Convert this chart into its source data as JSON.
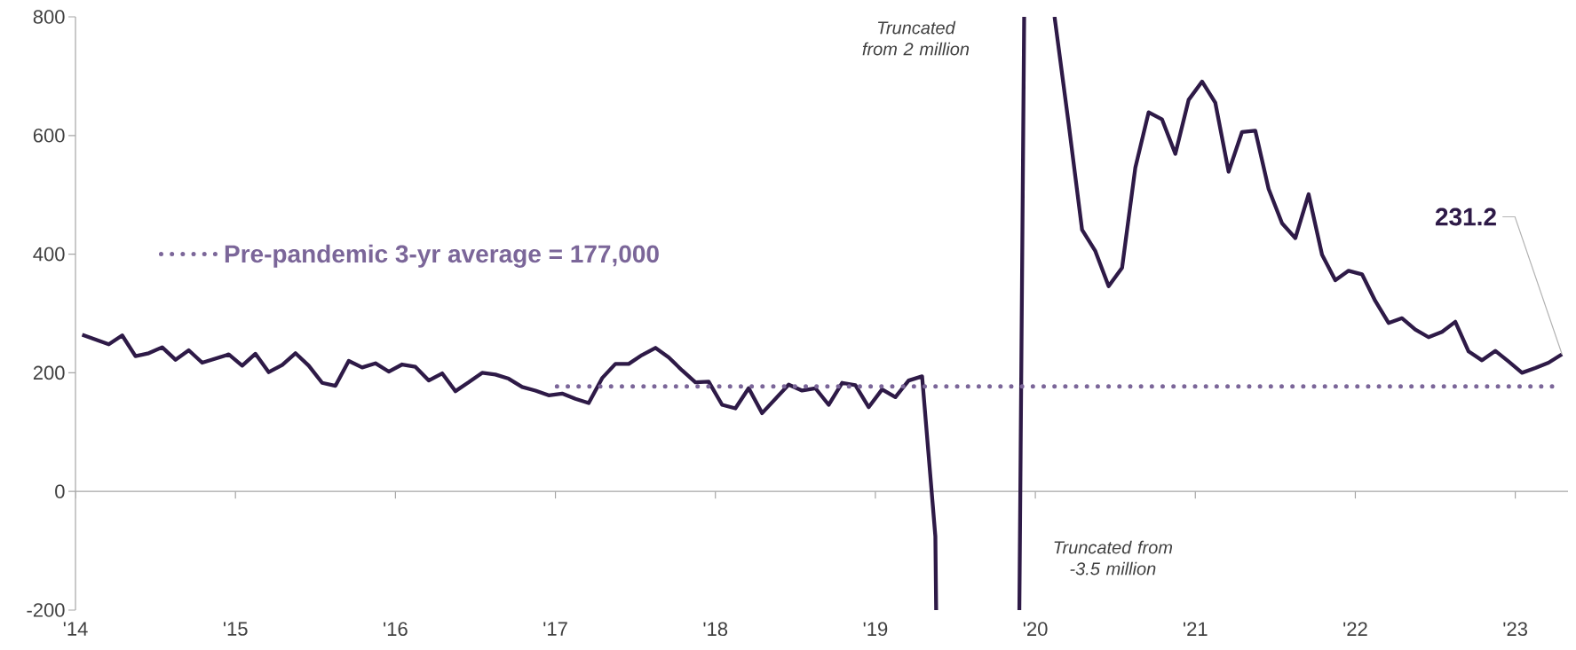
{
  "chart_data": {
    "type": "line",
    "xlim": [
      2014,
      2023.33
    ],
    "xticks": [
      {
        "value": 2014,
        "label": "'14"
      },
      {
        "value": 2015,
        "label": "'15"
      },
      {
        "value": 2016,
        "label": "'16"
      },
      {
        "value": 2017,
        "label": "'17"
      },
      {
        "value": 2018,
        "label": "'18"
      },
      {
        "value": 2019,
        "label": "'19"
      },
      {
        "value": 2020,
        "label": "'20"
      },
      {
        "value": 2021,
        "label": "'21"
      },
      {
        "value": 2022,
        "label": "'22"
      },
      {
        "value": 2023,
        "label": "'23"
      }
    ],
    "ylim": [
      -200,
      800
    ],
    "yticks": [
      -200,
      0,
      200,
      400,
      600,
      800
    ],
    "marker": "none",
    "legend": "left",
    "series": [
      {
        "color": "#2e1a47",
        "line_style": "solid",
        "x": [
          2014.042,
          2014.125,
          2014.208,
          2014.292,
          2014.375,
          2014.458,
          2014.542,
          2014.625,
          2014.708,
          2014.792,
          2014.875,
          2014.958,
          2015.042,
          2015.125,
          2015.208,
          2015.292,
          2015.375,
          2015.458,
          2015.542,
          2015.625,
          2015.708,
          2015.792,
          2015.875,
          2015.958,
          2016.042,
          2016.125,
          2016.208,
          2016.292,
          2016.375,
          2016.458,
          2016.542,
          2016.625,
          2016.708,
          2016.792,
          2016.875,
          2016.958,
          2017.042,
          2017.125,
          2017.208,
          2017.292,
          2017.375,
          2017.458,
          2017.542,
          2017.625,
          2017.708,
          2017.792,
          2017.875,
          2017.958,
          2018.042,
          2018.125,
          2018.208,
          2018.292,
          2018.375,
          2018.458,
          2018.542,
          2018.625,
          2018.708,
          2018.792,
          2018.875,
          2018.958,
          2019.042,
          2019.125,
          2019.208,
          2019.292,
          2019.375,
          2019.38,
          2019.6,
          2019.9,
          2019.93,
          2020.0,
          2020.12,
          2020.208,
          2020.292,
          2020.375,
          2020.458,
          2020.542,
          2020.625,
          2020.708,
          2020.792,
          2020.875,
          2020.958,
          2021.042,
          2021.125,
          2021.208,
          2021.292,
          2021.375,
          2021.458,
          2021.542,
          2021.625,
          2021.708,
          2021.792,
          2021.875,
          2021.958,
          2022.042,
          2022.125,
          2022.208,
          2022.292,
          2022.375,
          2022.458,
          2022.542,
          2022.625,
          2022.708,
          2022.792,
          2022.875,
          2022.958,
          2023.042,
          2023.125,
          2023.208,
          2023.292
        ],
        "values": [
          264,
          256,
          248,
          263,
          228,
          233,
          243,
          222,
          238,
          217,
          224,
          231,
          212,
          232,
          201,
          213,
          233,
          212,
          183,
          178,
          220,
          209,
          216,
          202,
          214,
          210,
          187,
          199,
          169,
          184,
          200,
          197,
          190,
          176,
          170,
          162,
          165,
          156,
          149,
          191,
          215,
          215,
          230,
          242,
          226,
          204,
          184,
          185,
          146,
          140,
          174,
          132,
          156,
          180,
          170,
          174,
          146,
          183,
          179,
          142,
          172,
          159,
          187,
          194,
          -76,
          -200,
          null,
          -200,
          800,
          null,
          800,
          620,
          441,
          405,
          346,
          377,
          546,
          639,
          627,
          569,
          660,
          691,
          655,
          539,
          606,
          608,
          510,
          452,
          427,
          501,
          399,
          356,
          372,
          366,
          321,
          284,
          292,
          273,
          260,
          269,
          286,
          236,
          221,
          237,
          219,
          200,
          208,
          217,
          231.2
        ]
      },
      {
        "type": "line",
        "name": "Pre-pandemic 3-yr average = 177,000",
        "color": "#7b6699",
        "line_style": "dotted",
        "x": [
          2017.01,
          2023.23
        ],
        "values": [
          177,
          177
        ]
      }
    ],
    "annotations": [
      "Truncated from 2 million",
      "Truncated from -3.5 million",
      {
        "text": "231.2",
        "x": 2023.292,
        "y": 231.2
      }
    ]
  }
}
